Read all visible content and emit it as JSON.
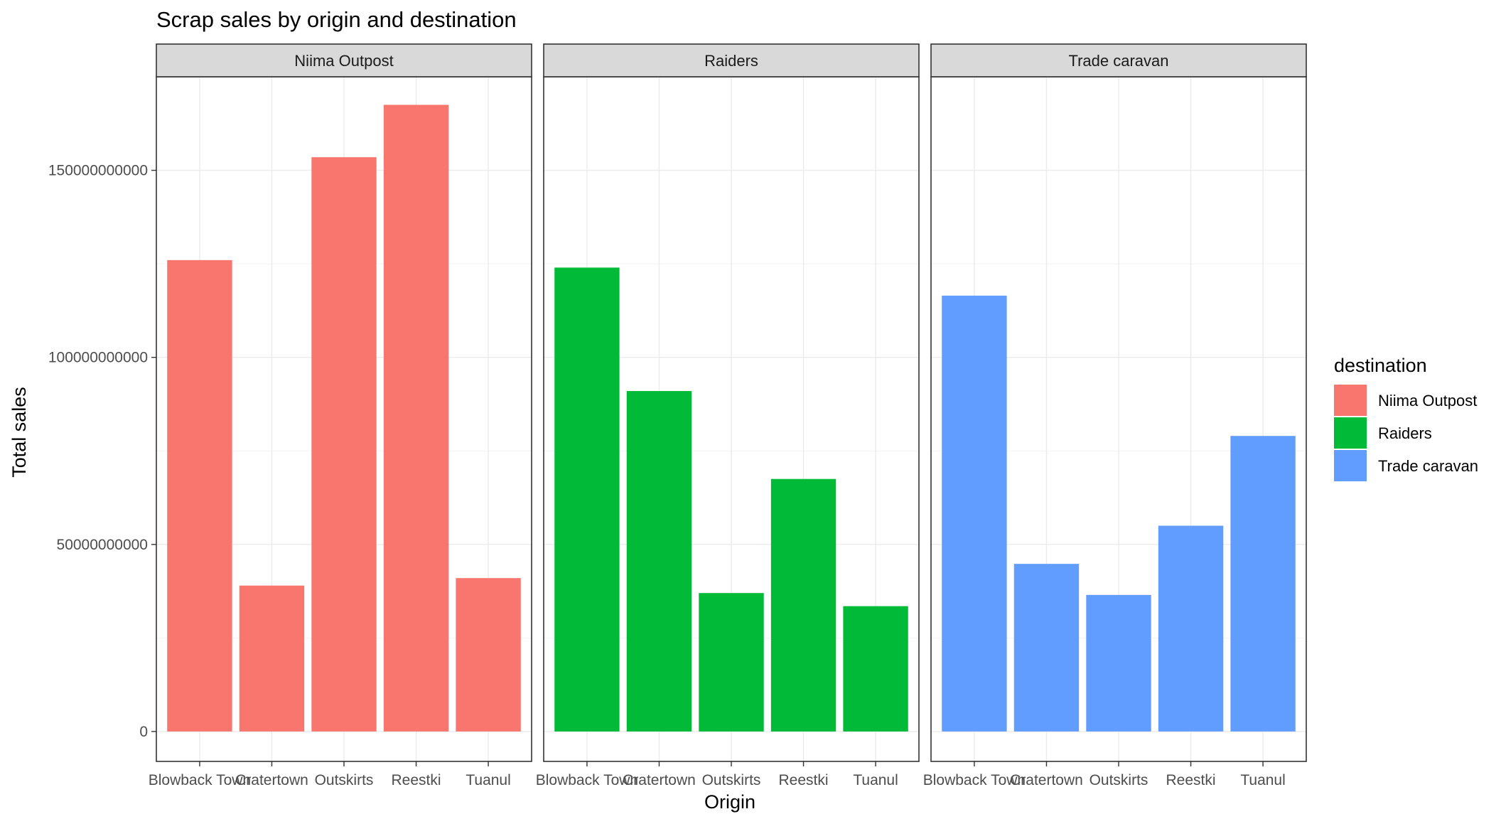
{
  "chart_data": {
    "type": "bar",
    "title": "Scrap sales by origin and destination",
    "xlabel": "Origin",
    "ylabel": "Total sales",
    "categories": [
      "Blowback Town",
      "Cratertown",
      "Outskirts",
      "Reestki",
      "Tuanul"
    ],
    "ylim": [
      -8000000000,
      175000000000
    ],
    "yticks": [
      0,
      50000000000,
      100000000000,
      150000000000
    ],
    "ytick_labels": [
      "0",
      "50000000000",
      "100000000000",
      "150000000000"
    ],
    "grid": true,
    "legend": {
      "title": "destination",
      "position": "right"
    },
    "facets": [
      {
        "name": "Niima Outpost",
        "color": "#F8766D",
        "values": [
          126000000000,
          39000000000,
          153500000000,
          167500000000,
          41000000000
        ]
      },
      {
        "name": "Raiders",
        "color": "#00BA38",
        "values": [
          124000000000,
          91000000000,
          37000000000,
          67500000000,
          33500000000
        ]
      },
      {
        "name": "Trade caravan",
        "color": "#619CFF",
        "values": [
          116500000000,
          44800000000,
          36500000000,
          55000000000,
          79000000000
        ]
      }
    ]
  }
}
